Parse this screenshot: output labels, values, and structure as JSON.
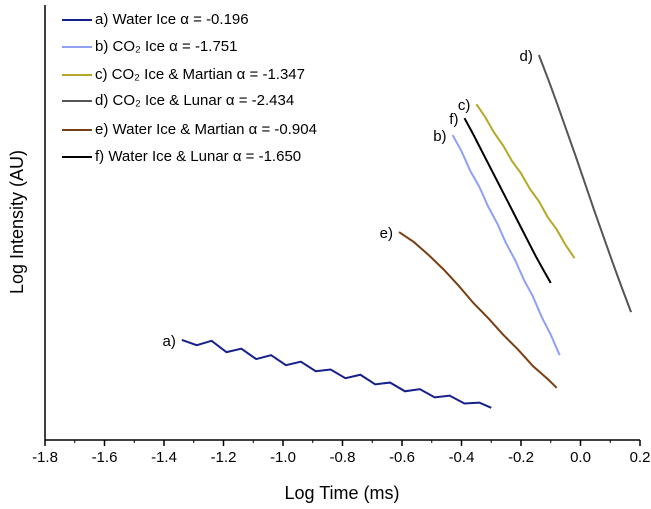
{
  "chart_data": {
    "type": "line",
    "xlabel": "Log Time (ms)",
    "ylabel": "Log Intensity (AU)",
    "xlim": [
      -1.8,
      0.2
    ],
    "ylim": [
      0,
      10
    ],
    "xticks": [
      -1.8,
      -1.6,
      -1.4,
      -1.2,
      {
        "value": -1,
        "label": "-1.0"
      },
      -0.8,
      -0.6,
      -0.4,
      -0.2,
      {
        "value": 0,
        "label": "0.0"
      },
      0.2
    ],
    "legend": "upper left",
    "series": [
      {
        "name": "a) Water Ice α = -0.196",
        "tag": "a)",
        "color": "#16208a",
        "x": [
          -1.34,
          -1.29,
          -1.24,
          -1.19,
          -1.14,
          -1.09,
          -1.04,
          -0.99,
          -0.94,
          -0.89,
          -0.84,
          -0.79,
          -0.74,
          -0.69,
          -0.64,
          -0.59,
          -0.54,
          -0.49,
          -0.44,
          -0.39,
          -0.34,
          -0.3
        ],
        "values": [
          2.3,
          2.18,
          2.28,
          2.02,
          2.1,
          1.86,
          1.95,
          1.72,
          1.8,
          1.58,
          1.62,
          1.42,
          1.5,
          1.28,
          1.32,
          1.12,
          1.17,
          0.98,
          1.02,
          0.84,
          0.86,
          0.74
        ]
      },
      {
        "name": "b) CO₂ Ice α = -1.751",
        "tag": "b)",
        "color": "#8fa0f5",
        "x": [
          -0.43,
          -0.4,
          -0.37,
          -0.34,
          -0.31,
          -0.28,
          -0.25,
          -0.22,
          -0.19,
          -0.16,
          -0.13,
          -0.1,
          -0.07
        ],
        "values": [
          7.01,
          6.64,
          6.18,
          5.82,
          5.36,
          4.98,
          4.52,
          4.14,
          3.68,
          3.3,
          2.82,
          2.42,
          1.95
        ]
      },
      {
        "name": "c) CO₂ Ice & Martian α = -1.347",
        "tag": "c)",
        "color": "#b5a828",
        "x": [
          -0.35,
          -0.32,
          -0.29,
          -0.26,
          -0.23,
          -0.2,
          -0.17,
          -0.14,
          -0.11,
          -0.08,
          -0.05,
          -0.02
        ],
        "values": [
          7.72,
          7.42,
          7.06,
          6.77,
          6.41,
          6.13,
          5.77,
          5.49,
          5.12,
          4.84,
          4.48,
          4.18
        ]
      },
      {
        "name": "d) CO₂ Ice & Lunar α = -2.434",
        "tag": "d)",
        "color": "#555555",
        "x": [
          -0.14,
          -0.109,
          -0.078,
          -0.047,
          -0.016,
          0.015,
          0.046,
          0.077,
          0.108,
          0.139,
          0.17
        ],
        "values": [
          8.85,
          8.3,
          7.72,
          7.12,
          6.52,
          5.9,
          5.28,
          4.68,
          4.08,
          3.5,
          2.94
        ]
      },
      {
        "name": "e) Water Ice & Martian α = -0.904",
        "tag": "e)",
        "color": "#7a3f12",
        "x": [
          -0.61,
          -0.56,
          -0.51,
          -0.46,
          -0.41,
          -0.36,
          -0.31,
          -0.26,
          -0.21,
          -0.16,
          -0.11,
          -0.08
        ],
        "values": [
          4.78,
          4.55,
          4.25,
          3.92,
          3.55,
          3.15,
          2.8,
          2.42,
          2.08,
          1.7,
          1.4,
          1.2
        ]
      },
      {
        "name": "f) Water Ice & Lunar α = -1.650",
        "tag": "f)",
        "color": "#000000",
        "x": [
          -0.39,
          -0.36,
          -0.33,
          -0.3,
          -0.27,
          -0.24,
          -0.21,
          -0.18,
          -0.15,
          -0.12,
          -0.1
        ],
        "values": [
          7.4,
          7.02,
          6.62,
          6.22,
          5.82,
          5.42,
          5.02,
          4.62,
          4.22,
          3.85,
          3.61
        ]
      }
    ]
  }
}
